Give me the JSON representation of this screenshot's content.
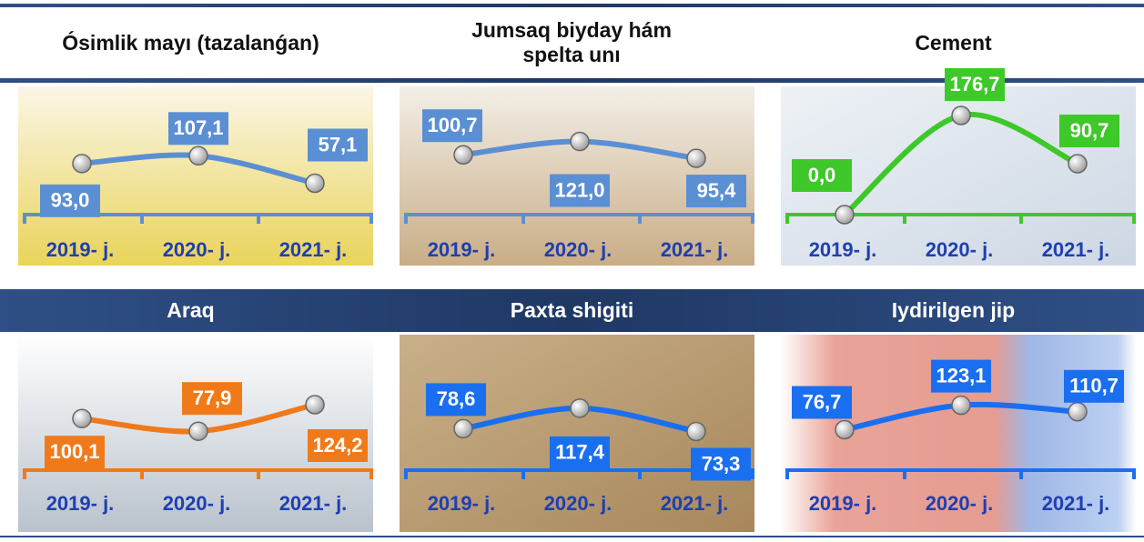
{
  "chart_data": [
    {
      "type": "line",
      "title": "Ósimlik mayı (tazalanǵan)",
      "categories": [
        "2019- j.",
        "2020- j.",
        "2021- j."
      ],
      "values": [
        93.0,
        107.1,
        57.1
      ],
      "value_labels": [
        "93,0",
        "107,1",
        "57,1"
      ],
      "color": "#5b8fd4",
      "ylim": [
        0,
        240
      ]
    },
    {
      "type": "line",
      "title": "Jumsaq biyday hám spelta unı",
      "categories": [
        "2019- j.",
        "2020- j.",
        "2021- j."
      ],
      "values": [
        100.7,
        121.0,
        95.4
      ],
      "value_labels": [
        "100,7",
        "121,0",
        "95,4"
      ],
      "color": "#5b8fd4",
      "ylim": [
        10,
        210
      ]
    },
    {
      "type": "line",
      "title": "Cement",
      "categories": [
        "2019- j.",
        "2020- j.",
        "2021- j."
      ],
      "values": [
        0.0,
        176.7,
        90.7
      ],
      "value_labels": [
        "0,0",
        "176,7",
        "90,7"
      ],
      "color": "#3ec829",
      "ylim": [
        0,
        235
      ]
    },
    {
      "type": "line",
      "title": "Araq",
      "categories": [
        "2019- j.",
        "2020- j.",
        "2021- j."
      ],
      "values": [
        100.1,
        77.9,
        124.2
      ],
      "value_labels": [
        "100,1",
        "77,9",
        "124,2"
      ],
      "color": "#f07a1a",
      "ylim": [
        10,
        240
      ]
    },
    {
      "type": "line",
      "title": "Paxta shigiti",
      "categories": [
        "2019- j.",
        "2020- j.",
        "2021- j."
      ],
      "values": [
        78.6,
        117.4,
        73.3
      ],
      "value_labels": [
        "78,6",
        "117,4",
        "73,3"
      ],
      "color": "#1a6ff0",
      "ylim": [
        0,
        250
      ]
    },
    {
      "type": "line",
      "title": "Iydirilgen jip",
      "categories": [
        "2019- j.",
        "2020- j.",
        "2021- j."
      ],
      "values": [
        76.7,
        123.1,
        110.7
      ],
      "value_labels": [
        "76,7",
        "123,1",
        "110,7"
      ],
      "color": "#1a6ff0",
      "ylim": [
        0,
        250
      ]
    }
  ]
}
